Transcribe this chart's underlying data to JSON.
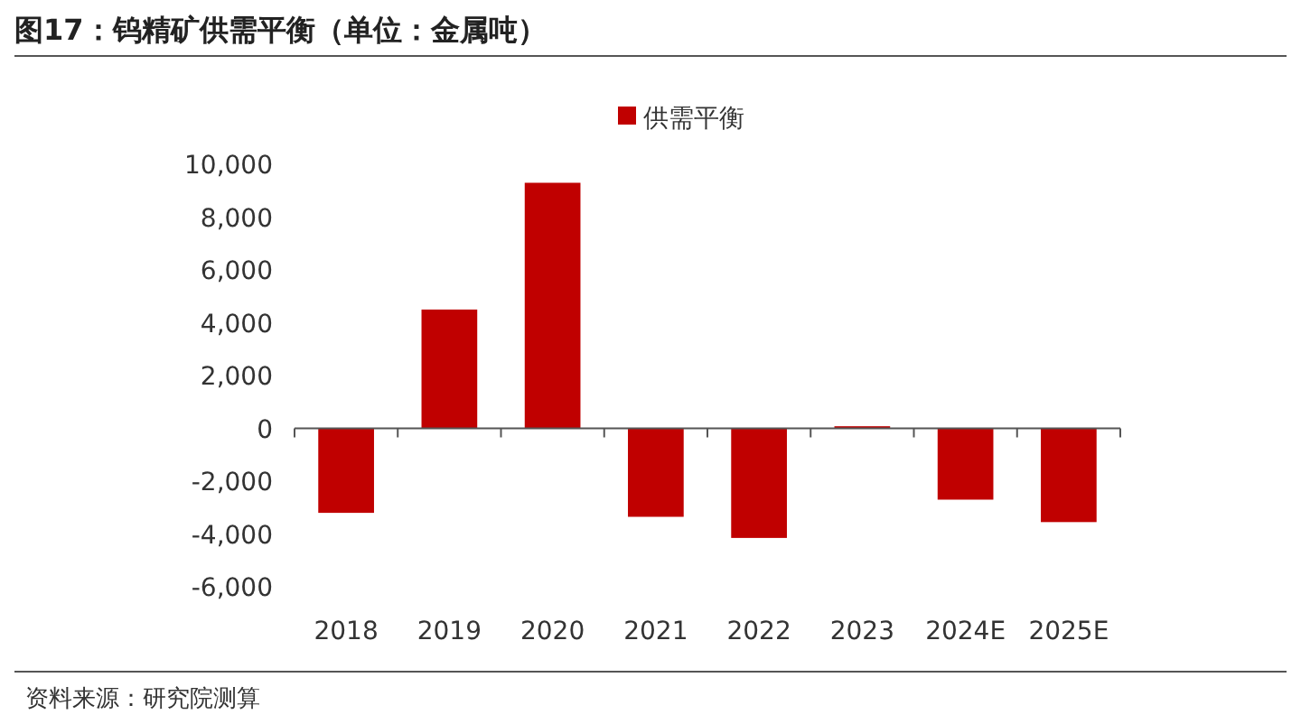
{
  "chart_data": {
    "type": "bar",
    "title": "图17：钨精矿供需平衡（单位：金属吨）",
    "categories": [
      "2018",
      "2019",
      "2020",
      "2021",
      "2022",
      "2023",
      "2024E",
      "2025E"
    ],
    "series": [
      {
        "name": "供需平衡",
        "color": "#c00000",
        "values": [
          -3200,
          4500,
          9300,
          -3350,
          -4150,
          80,
          -2700,
          -3550
        ]
      }
    ],
    "ylim": [
      -6000,
      10000
    ],
    "yticks": [
      {
        "value": -6000,
        "label": "-6,000"
      },
      {
        "value": -4000,
        "label": "-4,000"
      },
      {
        "value": -2000,
        "label": "-2,000"
      },
      0,
      {
        "value": 2000,
        "label": "2,000"
      },
      {
        "value": 4000,
        "label": "4,000"
      },
      {
        "value": 6000,
        "label": "6,000"
      },
      {
        "value": 8000,
        "label": "8,000"
      },
      {
        "value": 10000,
        "label": "10,000"
      }
    ],
    "legend": "top",
    "annotations": [
      "资料来源：研究院测算"
    ]
  }
}
